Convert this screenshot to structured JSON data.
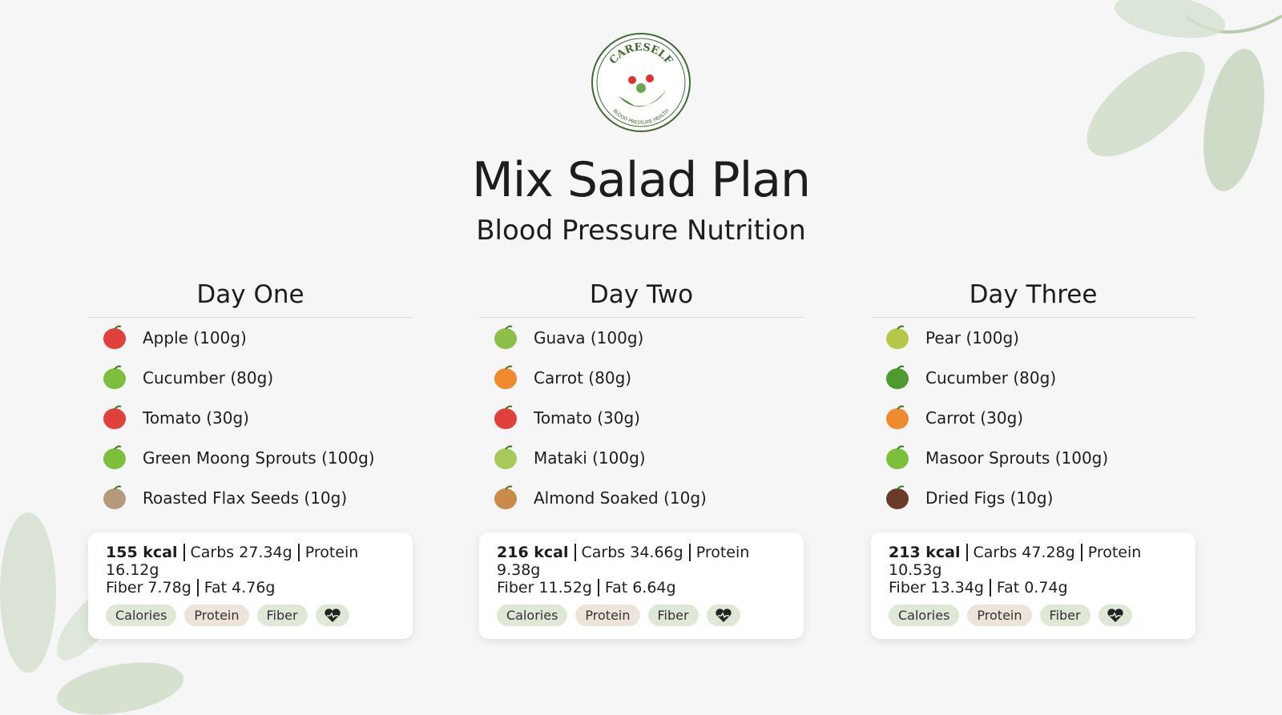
{
  "header": {
    "logo_top": "CARESELF",
    "logo_bottom": "BLOOD PRESSURE HEALTH",
    "title": "Mix Salad Plan",
    "subtitle": "Blood Pressure Nutrition"
  },
  "days": [
    {
      "name": "Day One",
      "items": [
        "Apple (100g)",
        "Cucumber (80g)",
        "Tomato (30g)",
        "Green Moong Sprouts (100g)",
        "Roasted Flax Seeds (10g)"
      ],
      "summary": {
        "kcal": "155 kcal",
        "line1": [
          "Carbs 27.34g",
          "Protein 16.12g"
        ],
        "line2": [
          "Fiber 7.78g",
          "Fat 4.76g"
        ]
      },
      "tags": [
        "Calories",
        "Protein",
        "Fiber"
      ]
    },
    {
      "name": "Day Two",
      "items": [
        "Guava (100g)",
        "Carrot (80g)",
        "Tomato (30g)",
        "Mataki (100g)",
        "Almond Soaked (10g)"
      ],
      "summary": {
        "kcal": "216 kcal",
        "line1": [
          "Carbs 34.66g",
          "Protein 9.38g"
        ],
        "line2": [
          "Fiber 11.52g",
          "Fat 6.64g"
        ]
      },
      "tags": [
        "Calories",
        "Protein",
        "Fiber"
      ]
    },
    {
      "name": "Day Three",
      "items": [
        "Pear (100g)",
        "Cucumber (80g)",
        "Carrot (30g)",
        "Masoor Sprouts (100g)",
        "Dried Figs (10g)"
      ],
      "summary": {
        "kcal": "213 kcal",
        "line1": [
          "Carbs 47.28g",
          "Protein 10.53g"
        ],
        "line2": [
          "Fiber 13.34g",
          "Fat 0.74g"
        ]
      },
      "tags": [
        "Calories",
        "Protein",
        "Fiber"
      ]
    }
  ]
}
